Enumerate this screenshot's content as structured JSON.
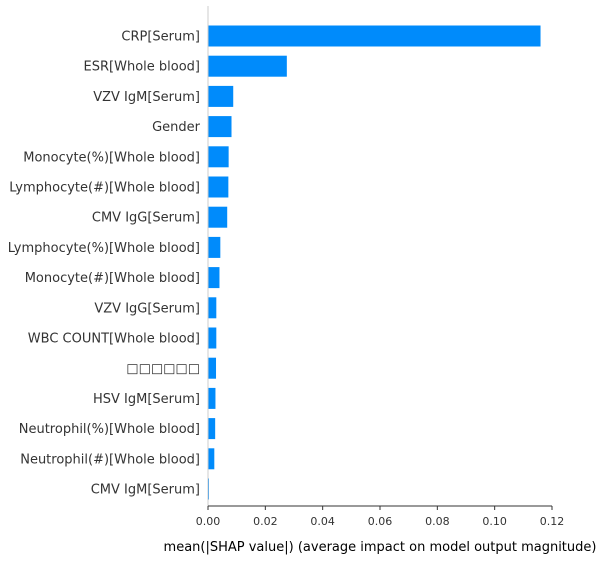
{
  "chart_data": {
    "type": "bar",
    "orientation": "horizontal",
    "categories": [
      "CRP[Serum]",
      "ESR[Whole blood]",
      "VZV IgM[Serum]",
      "Gender",
      "Monocyte(%)[Whole blood]",
      "Lymphocyte(#)[Whole blood]",
      "CMV IgG[Serum]",
      "Lymphocyte(%)[Whole blood]",
      "Monocyte(#)[Whole blood]",
      "VZV IgG[Serum]",
      "WBC COUNT[Whole blood]",
      "□□□□□□",
      "HSV IgM[Serum]",
      "Neutrophil(%)[Whole blood]",
      "Neutrophil(#)[Whole blood]",
      "CMV IgM[Serum]"
    ],
    "values": [
      0.116,
      0.0275,
      0.0088,
      0.0082,
      0.0072,
      0.0071,
      0.0067,
      0.0043,
      0.004,
      0.0029,
      0.0029,
      0.0028,
      0.0026,
      0.0025,
      0.0022,
      0.0003
    ],
    "xlabel": "mean(|SHAP value|) (average impact on model output magnitude)",
    "xlim": [
      0,
      0.12
    ],
    "xticks": [
      "0.00",
      "0.02",
      "0.04",
      "0.06",
      "0.08",
      "0.10",
      "0.12"
    ],
    "bar_color": "#008bfb",
    "grid": false,
    "legend": "none"
  }
}
